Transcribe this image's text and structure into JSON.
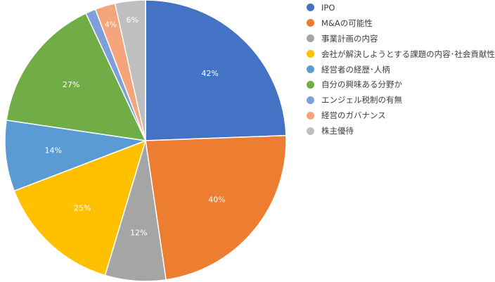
{
  "chart_data": {
    "type": "pie",
    "categories": [
      "IPO",
      "M&Aの可能性",
      "事業計画の内容",
      "会社が解決しようとする課題の内容･社会貢献性",
      "経営者の経歴･人柄",
      "自分の興味ある分野か",
      "エンジェル税制の有無",
      "経営のガバナンス",
      "株主優待"
    ],
    "values": [
      42,
      40,
      12,
      25,
      14,
      27,
      2,
      4,
      6
    ],
    "data_labels": [
      "42%",
      "40%",
      "12%",
      "25%",
      "14%",
      "27%",
      "",
      "4%",
      "6%"
    ],
    "colors": [
      "#4472C4",
      "#ED7D31",
      "#A5A5A5",
      "#FFC000",
      "#5B9BD5",
      "#70AD47",
      "#7F9FD9",
      "#F4A57B",
      "#BFBFBF"
    ],
    "legend_position": "right",
    "title": ""
  }
}
